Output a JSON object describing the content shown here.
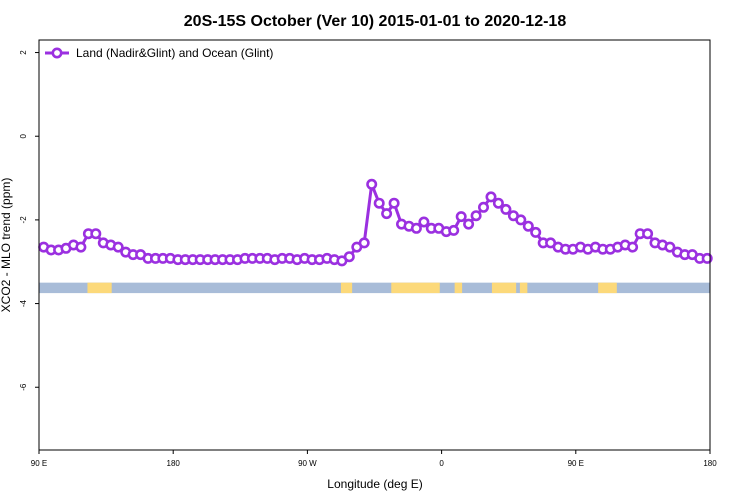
{
  "chart_data": {
    "type": "line",
    "title": "20S-15S October (Ver 10)   2015-01-01 to 2020-12-18",
    "xlabel": "Longitude (deg E)",
    "ylabel": "XCO2 - MLO trend (ppm)",
    "xlim": [
      90,
      450
    ],
    "ylim": [
      -7.5,
      2.3
    ],
    "x_ticks": [
      {
        "value": 90,
        "label": "90 E"
      },
      {
        "value": 162,
        "label": "180"
      },
      {
        "value": 234,
        "label": "90 W"
      },
      {
        "value": 306,
        "label": "0"
      },
      {
        "value": 378,
        "label": "90 E"
      },
      {
        "value": 450,
        "label": "180"
      }
    ],
    "y_ticks": [
      {
        "value": 2,
        "label": "2"
      },
      {
        "value": 0,
        "label": "0"
      },
      {
        "value": -2,
        "label": "-2"
      },
      {
        "value": -4,
        "label": "-4"
      },
      {
        "value": -6,
        "label": "-6"
      }
    ],
    "grid": false,
    "legend": {
      "position": "top-left"
    },
    "series": [
      {
        "name": "Land (Nadir&Glint) and Ocean (Glint)",
        "color": "#9b30e0",
        "x": [
          92.5,
          96.5,
          100.5,
          104.5,
          108.5,
          112.5,
          116.5,
          120.5,
          124.5,
          128.5,
          132.5,
          136.5,
          140.5,
          144.5,
          148.5,
          152.5,
          156.5,
          160.5,
          164.5,
          168.5,
          172.5,
          176.5,
          180.5,
          184.5,
          188.5,
          192.5,
          196.5,
          200.5,
          204.5,
          208.5,
          212.5,
          216.5,
          220.5,
          224.5,
          228.5,
          232.5,
          236.5,
          240.5,
          244.5,
          248.5,
          252.5,
          256.5,
          260.5,
          264.5,
          268.5,
          272.5,
          276.5,
          280.5,
          284.5,
          288.5,
          292.5,
          296.5,
          300.5,
          304.5,
          308.5,
          312.5,
          316.5,
          320.5,
          324.5,
          328.5,
          332.5,
          336.5,
          340.5,
          344.5,
          348.5,
          352.5,
          356.5,
          360.5,
          364.5,
          368.5,
          372.5,
          376.5,
          380.5,
          384.5,
          388.5,
          392.5,
          396.5,
          400.5,
          404.5,
          408.5,
          412.5,
          416.5,
          420.5,
          424.5,
          428.5,
          432.5,
          436.5,
          440.5,
          444.5,
          448.5
        ],
        "values": [
          -2.65,
          -2.72,
          -2.72,
          -2.68,
          -2.6,
          -2.65,
          -2.33,
          -2.33,
          -2.55,
          -2.6,
          -2.65,
          -2.77,
          -2.83,
          -2.83,
          -2.92,
          -2.92,
          -2.92,
          -2.92,
          -2.95,
          -2.95,
          -2.95,
          -2.95,
          -2.95,
          -2.95,
          -2.95,
          -2.95,
          -2.95,
          -2.92,
          -2.92,
          -2.92,
          -2.92,
          -2.95,
          -2.92,
          -2.92,
          -2.95,
          -2.92,
          -2.95,
          -2.95,
          -2.92,
          -2.95,
          -2.98,
          -2.88,
          -2.65,
          -2.55,
          -1.15,
          -1.6,
          -1.85,
          -1.6,
          -2.1,
          -2.15,
          -2.2,
          -2.05,
          -2.2,
          -2.2,
          -2.28,
          -2.25,
          -1.92,
          -2.1,
          -1.9,
          -1.7,
          -1.45,
          -1.6,
          -1.75,
          -1.9,
          -2.0,
          -2.15,
          -2.3,
          -2.55,
          -2.55,
          -2.65,
          -2.7,
          -2.7,
          -2.65,
          -2.7,
          -2.65,
          -2.7,
          -2.7,
          -2.65,
          -2.6,
          -2.65,
          -2.33,
          -2.33,
          -2.55,
          -2.6,
          -2.65,
          -2.77,
          -2.83,
          -2.83,
          -2.92,
          -2.92
        ]
      }
    ],
    "surface_strip": {
      "y_range": [
        -3.75,
        -3.5
      ],
      "colors": {
        "ocean": "#a8bcd8",
        "land": "#fcd97a"
      },
      "land_spans": [
        [
          116,
          129
        ],
        [
          252,
          258
        ],
        [
          279,
          305
        ],
        [
          313,
          317
        ],
        [
          333,
          346
        ],
        [
          348,
          352
        ],
        [
          390,
          400
        ]
      ]
    }
  }
}
